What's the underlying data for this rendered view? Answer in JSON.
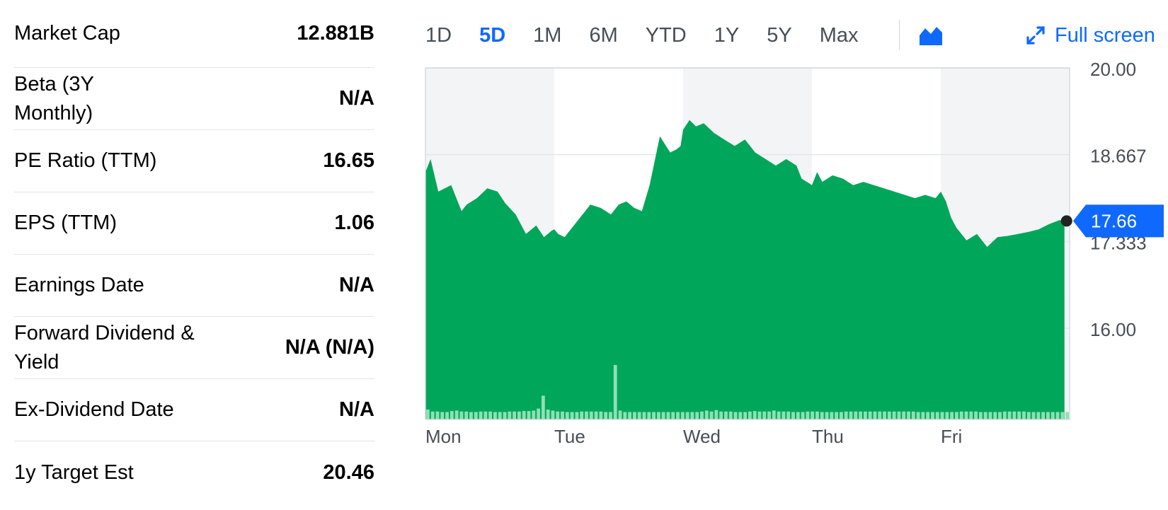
{
  "stats": [
    {
      "label": "Market Cap",
      "value": "12.881B"
    },
    {
      "label": "Beta (3Y Monthly)",
      "value": "N/A"
    },
    {
      "label": "PE Ratio (TTM)",
      "value": "16.65"
    },
    {
      "label": "EPS (TTM)",
      "value": "1.06"
    },
    {
      "label": "Earnings Date",
      "value": "N/A"
    },
    {
      "label": "Forward Dividend & Yield",
      "value": "N/A (N/A)"
    },
    {
      "label": "Ex-Dividend Date",
      "value": "N/A"
    },
    {
      "label": "1y Target Est",
      "value": "20.46"
    }
  ],
  "range_tabs": [
    "1D",
    "5D",
    "1M",
    "6M",
    "YTD",
    "1Y",
    "5Y",
    "Max"
  ],
  "active_range": "5D",
  "chart_type_icon": "area-chart-icon",
  "fullscreen": {
    "label": "Full screen",
    "icon": "expand-arrows-icon"
  },
  "colors": {
    "accent": "#0f69ff",
    "area_fill": "#00a65a",
    "volume_bar": "#8ee0b4",
    "band_shade": "#f3f4f5"
  },
  "current_price": "17.66",
  "chart_data": {
    "type": "area",
    "title": "",
    "xlabel": "",
    "ylabel": "",
    "ylim": [
      14.6,
      20.0
    ],
    "y_ticks": [
      "20.00",
      "18.667",
      "17.333",
      "16.00"
    ],
    "y_tick_values": [
      20.0,
      18.667,
      17.333,
      16.0
    ],
    "x_ticks": [
      "Mon",
      "Tue",
      "Wed",
      "Thu",
      "Fri"
    ],
    "days": 5,
    "series": [
      {
        "x": [
          0.0,
          0.04,
          0.1,
          0.2,
          0.28,
          0.32,
          0.4,
          0.48,
          0.56,
          0.62,
          0.7,
          0.78,
          0.86,
          0.92,
          0.98,
          1.0,
          1.03,
          1.08,
          1.12,
          1.2,
          1.28,
          1.36,
          1.44,
          1.5,
          1.56,
          1.62,
          1.68,
          1.74,
          1.82,
          1.9,
          1.95,
          1.98,
          2.0,
          2.05,
          2.1,
          2.16,
          2.24,
          2.32,
          2.4,
          2.48,
          2.56,
          2.64,
          2.72,
          2.8,
          2.88,
          2.92,
          2.96,
          3.0,
          3.04,
          3.08,
          3.16,
          3.24,
          3.32,
          3.4,
          3.48,
          3.56,
          3.64,
          3.72,
          3.8,
          3.88,
          3.96,
          4.0,
          4.04,
          4.08,
          4.12,
          4.2,
          4.28,
          4.36,
          4.44,
          4.52,
          4.6,
          4.68,
          4.76,
          4.84,
          4.92,
          4.96
        ],
        "y": [
          18.4,
          18.6,
          18.1,
          18.2,
          17.8,
          17.9,
          18.0,
          18.15,
          18.1,
          17.92,
          17.75,
          17.45,
          17.58,
          17.4,
          17.5,
          17.52,
          17.45,
          17.4,
          17.5,
          17.7,
          17.9,
          17.85,
          17.75,
          17.9,
          17.95,
          17.85,
          17.8,
          18.2,
          18.95,
          18.7,
          18.75,
          18.8,
          19.05,
          19.2,
          19.1,
          19.15,
          19.0,
          18.9,
          18.8,
          18.9,
          18.7,
          18.6,
          18.5,
          18.6,
          18.5,
          18.3,
          18.25,
          18.2,
          18.4,
          18.25,
          18.35,
          18.3,
          18.2,
          18.25,
          18.2,
          18.15,
          18.1,
          18.05,
          18.0,
          18.05,
          18.0,
          18.1,
          17.95,
          17.7,
          17.55,
          17.35,
          17.45,
          17.25,
          17.4,
          17.42,
          17.45,
          17.48,
          17.52,
          17.6,
          17.66,
          17.66
        ]
      }
    ],
    "volume": [
      2,
      1.6,
      1.6,
      1.5,
      1.5,
      1.7,
      1.8,
      1.6,
      1.6,
      1.5,
      1.5,
      1.6,
      1.6,
      1.6,
      1.5,
      1.5,
      1.5,
      1.6,
      1.6,
      1.6,
      1.7,
      1.7,
      1.8,
      2.2,
      4.8,
      2,
      1.8,
      1.6,
      1.6,
      1.5,
      1.5,
      1.5,
      1.6,
      1.6,
      1.6,
      1.6,
      1.6,
      1.5,
      1.5,
      11,
      1.8,
      1.5,
      1.5,
      1.5,
      1.5,
      1.5,
      1.5,
      1.5,
      1.5,
      1.5,
      1.5,
      1.5,
      1.5,
      1.5,
      1.5,
      1.5,
      1.5,
      1.6,
      1.8,
      1.6,
      1.9,
      1.6,
      1.6,
      1.6,
      1.5,
      1.5,
      1.5,
      1.6,
      1.7,
      1.6,
      1.6,
      1.6,
      1.8,
      1.6,
      1.6,
      1.6,
      1.5,
      1.5,
      1.5,
      1.6,
      1.6,
      1.6,
      1.5,
      1.5,
      1.5,
      1.5,
      1.5,
      1.6,
      1.6,
      1.6,
      1.6,
      1.6,
      1.6,
      1.6,
      1.6,
      1.6,
      1.6,
      1.6,
      1.6,
      1.6,
      1.6,
      1.6,
      1.5,
      1.5,
      1.5,
      1.5,
      1.5,
      1.5,
      1.5,
      1.5,
      1.5,
      1.6,
      1.6,
      1.6,
      1.6,
      1.5,
      1.5,
      1.5,
      1.5,
      1.5,
      1.6,
      1.6,
      1.6,
      1.6,
      1.6,
      1.5,
      1.5,
      1.5,
      1.5,
      1.5,
      1.5,
      1.5,
      1.5,
      1.5
    ]
  }
}
